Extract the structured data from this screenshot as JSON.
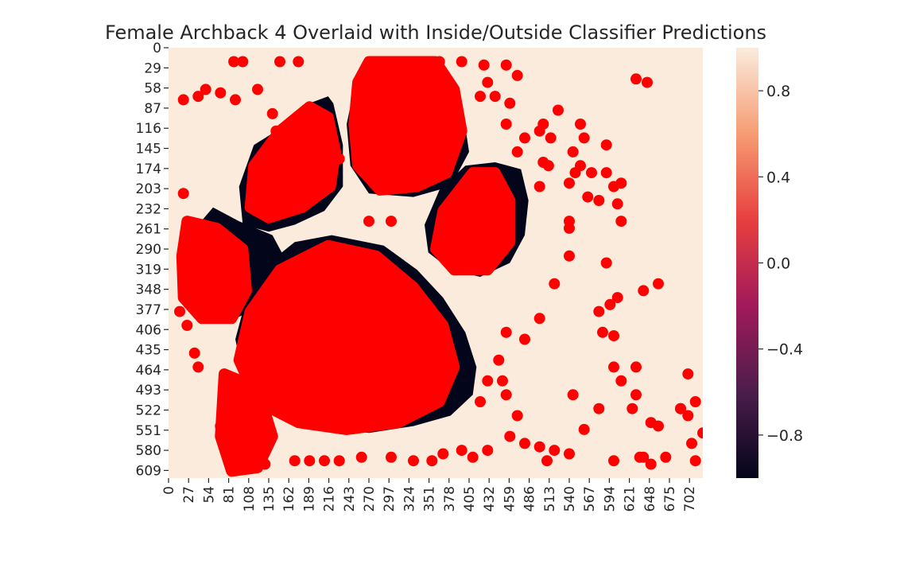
{
  "chart_data": {
    "type": "heatmap",
    "title": "Female Archback 4 Overlaid with Inside/Outside Classifier Predictions",
    "xlabel": "",
    "ylabel": "",
    "x_ticks": [
      "0",
      "27",
      "54",
      "81",
      "108",
      "135",
      "162",
      "189",
      "216",
      "243",
      "270",
      "297",
      "324",
      "351",
      "378",
      "405",
      "432",
      "459",
      "486",
      "513",
      "540",
      "567",
      "594",
      "621",
      "648",
      "675",
      "702"
    ],
    "y_ticks": [
      "0",
      "29",
      "58",
      "87",
      "116",
      "145",
      "174",
      "203",
      "232",
      "261",
      "290",
      "319",
      "348",
      "377",
      "406",
      "435",
      "464",
      "493",
      "522",
      "551",
      "580",
      "609"
    ],
    "xlim": [
      0,
      720
    ],
    "ylim": [
      0,
      620
    ],
    "colorbar": {
      "range": [
        -1,
        1
      ],
      "ticks": [
        0.8,
        0.4,
        0.0,
        -0.4,
        -0.8
      ],
      "tick_labels": [
        "0.8",
        "0.4",
        "0.0",
        "−0.4",
        "−0.8"
      ],
      "colormap": "rocket",
      "colors": [
        "#03051a",
        "#4c1d4b",
        "#a11a5b",
        "#e83f3f",
        "#f69c73",
        "#faebdd"
      ]
    },
    "background_value": 1.0,
    "inside_value": -1.0,
    "background_color": "#faebdd",
    "inside_color": "#03051a",
    "prediction_color": "#ff0000",
    "inside_regions": [
      {
        "name": "top-toe",
        "points": [
          [
            270,
            30
          ],
          [
            370,
            30
          ],
          [
            395,
            80
          ],
          [
            405,
            150
          ],
          [
            380,
            200
          ],
          [
            330,
            215
          ],
          [
            270,
            210
          ],
          [
            245,
            170
          ],
          [
            240,
            110
          ],
          [
            250,
            60
          ]
        ]
      },
      {
        "name": "upper-left-toe",
        "points": [
          [
            215,
            70
          ],
          [
            222,
            80
          ],
          [
            235,
            140
          ],
          [
            235,
            200
          ],
          [
            210,
            235
          ],
          [
            170,
            255
          ],
          [
            135,
            265
          ],
          [
            100,
            255
          ],
          [
            95,
            200
          ],
          [
            115,
            140
          ],
          [
            160,
            110
          ],
          [
            190,
            80
          ]
        ]
      },
      {
        "name": "right-toe",
        "points": [
          [
            400,
            170
          ],
          [
            440,
            165
          ],
          [
            475,
            175
          ],
          [
            485,
            220
          ],
          [
            480,
            270
          ],
          [
            460,
            310
          ],
          [
            420,
            330
          ],
          [
            380,
            320
          ],
          [
            350,
            295
          ],
          [
            345,
            255
          ],
          [
            365,
            205
          ]
        ]
      },
      {
        "name": "left-toe",
        "points": [
          [
            60,
            230
          ],
          [
            95,
            250
          ],
          [
            140,
            270
          ],
          [
            155,
            300
          ],
          [
            140,
            340
          ],
          [
            110,
            380
          ],
          [
            80,
            395
          ],
          [
            40,
            390
          ],
          [
            20,
            350
          ],
          [
            25,
            300
          ],
          [
            40,
            255
          ]
        ]
      },
      {
        "name": "main-pad",
        "points": [
          [
            220,
            270
          ],
          [
            290,
            285
          ],
          [
            335,
            320
          ],
          [
            370,
            360
          ],
          [
            400,
            410
          ],
          [
            415,
            460
          ],
          [
            410,
            500
          ],
          [
            380,
            530
          ],
          [
            330,
            545
          ],
          [
            270,
            555
          ],
          [
            200,
            545
          ],
          [
            130,
            520
          ],
          [
            100,
            470
          ],
          [
            90,
            420
          ],
          [
            105,
            360
          ],
          [
            135,
            310
          ],
          [
            170,
            280
          ]
        ]
      }
    ],
    "inside_holes": [
      {
        "name": "top-toe-gap",
        "points": [
          [
            340,
            30
          ],
          [
            360,
            38
          ],
          [
            365,
            45
          ],
          [
            345,
            40
          ]
        ]
      },
      {
        "name": "top-toe-notch",
        "points": [
          [
            330,
            180
          ],
          [
            345,
            185
          ],
          [
            342,
            205
          ],
          [
            325,
            200
          ]
        ]
      },
      {
        "name": "main-pad-slit",
        "points": [
          [
            285,
            320
          ],
          [
            300,
            325
          ],
          [
            300,
            340
          ],
          [
            285,
            335
          ]
        ]
      },
      {
        "name": "main-pad-dot",
        "points": [
          [
            355,
            445
          ],
          [
            368,
            448
          ],
          [
            365,
            462
          ],
          [
            352,
            458
          ]
        ]
      }
    ],
    "predictions": [
      {
        "name": "top-toe-fill",
        "points": [
          [
            270,
            20
          ],
          [
            360,
            20
          ],
          [
            385,
            60
          ],
          [
            395,
            120
          ],
          [
            375,
            180
          ],
          [
            335,
            200
          ],
          [
            285,
            205
          ],
          [
            255,
            170
          ],
          [
            250,
            110
          ],
          [
            255,
            50
          ]
        ]
      },
      {
        "name": "upper-left-toe-fill",
        "points": [
          [
            190,
            85
          ],
          [
            215,
            100
          ],
          [
            225,
            150
          ],
          [
            218,
            200
          ],
          [
            180,
            230
          ],
          [
            135,
            245
          ],
          [
            110,
            230
          ],
          [
            115,
            170
          ],
          [
            150,
            120
          ]
        ]
      },
      {
        "name": "right-toe-fill",
        "points": [
          [
            410,
            180
          ],
          [
            440,
            180
          ],
          [
            460,
            220
          ],
          [
            460,
            280
          ],
          [
            430,
            320
          ],
          [
            385,
            320
          ],
          [
            360,
            290
          ],
          [
            370,
            235
          ]
        ]
      },
      {
        "name": "left-toe-fill",
        "points": [
          [
            25,
            250
          ],
          [
            65,
            260
          ],
          [
            100,
            290
          ],
          [
            105,
            350
          ],
          [
            85,
            390
          ],
          [
            45,
            390
          ],
          [
            20,
            360
          ],
          [
            18,
            300
          ]
        ]
      },
      {
        "name": "main-pad-fill",
        "points": [
          [
            215,
            285
          ],
          [
            280,
            300
          ],
          [
            330,
            345
          ],
          [
            370,
            400
          ],
          [
            385,
            460
          ],
          [
            365,
            510
          ],
          [
            310,
            540
          ],
          [
            240,
            550
          ],
          [
            175,
            540
          ],
          [
            120,
            510
          ],
          [
            95,
            450
          ],
          [
            110,
            380
          ],
          [
            150,
            320
          ]
        ]
      },
      {
        "name": "bottom-left-cluster",
        "points": [
          [
            75,
            470
          ],
          [
            120,
            490
          ],
          [
            140,
            560
          ],
          [
            120,
            605
          ],
          [
            85,
            610
          ],
          [
            70,
            560
          ]
        ]
      }
    ],
    "prediction_dots": [
      [
        88,
        20
      ],
      [
        100,
        20
      ],
      [
        150,
        20
      ],
      [
        175,
        20
      ],
      [
        290,
        20
      ],
      [
        305,
        20
      ],
      [
        335,
        20
      ],
      [
        365,
        20
      ],
      [
        395,
        20
      ],
      [
        425,
        25
      ],
      [
        455,
        25
      ],
      [
        470,
        40
      ],
      [
        430,
        50
      ],
      [
        420,
        70
      ],
      [
        440,
        70
      ],
      [
        460,
        80
      ],
      [
        455,
        110
      ],
      [
        470,
        150
      ],
      [
        480,
        130
      ],
      [
        500,
        120
      ],
      [
        505,
        110
      ],
      [
        515,
        130
      ],
      [
        512,
        170
      ],
      [
        545,
        150
      ],
      [
        560,
        130
      ],
      [
        555,
        170
      ],
      [
        570,
        180
      ],
      [
        590,
        180
      ],
      [
        600,
        200
      ],
      [
        610,
        195
      ],
      [
        605,
        225
      ],
      [
        610,
        250
      ],
      [
        580,
        220
      ],
      [
        565,
        215
      ],
      [
        540,
        195
      ],
      [
        548,
        180
      ],
      [
        590,
        140
      ],
      [
        555,
        110
      ],
      [
        525,
        90
      ],
      [
        500,
        200
      ],
      [
        540,
        260
      ],
      [
        540,
        300
      ],
      [
        520,
        340
      ],
      [
        500,
        390
      ],
      [
        480,
        420
      ],
      [
        455,
        410
      ],
      [
        445,
        450
      ],
      [
        450,
        480
      ],
      [
        420,
        510
      ],
      [
        430,
        480
      ],
      [
        455,
        500
      ],
      [
        470,
        530
      ],
      [
        480,
        570
      ],
      [
        500,
        575
      ],
      [
        510,
        595
      ],
      [
        520,
        580
      ],
      [
        540,
        585
      ],
      [
        460,
        560
      ],
      [
        430,
        580
      ],
      [
        410,
        590
      ],
      [
        395,
        580
      ],
      [
        20,
        75
      ],
      [
        40,
        70
      ],
      [
        50,
        60
      ],
      [
        70,
        65
      ],
      [
        90,
        75
      ],
      [
        120,
        60
      ],
      [
        140,
        95
      ],
      [
        145,
        120
      ],
      [
        20,
        210
      ],
      [
        30,
        270
      ],
      [
        15,
        380
      ],
      [
        25,
        400
      ],
      [
        35,
        440
      ],
      [
        40,
        460
      ],
      [
        70,
        545
      ],
      [
        80,
        590
      ],
      [
        100,
        600
      ],
      [
        130,
        600
      ],
      [
        170,
        595
      ],
      [
        190,
        595
      ],
      [
        210,
        595
      ],
      [
        230,
        595
      ],
      [
        260,
        590
      ],
      [
        300,
        590
      ],
      [
        330,
        595
      ],
      [
        355,
        595
      ],
      [
        370,
        585
      ],
      [
        580,
        380
      ],
      [
        595,
        370
      ],
      [
        605,
        360
      ],
      [
        585,
        410
      ],
      [
        600,
        415
      ],
      [
        640,
        350
      ],
      [
        660,
        340
      ],
      [
        610,
        480
      ],
      [
        630,
        500
      ],
      [
        625,
        520
      ],
      [
        650,
        540
      ],
      [
        660,
        545
      ],
      [
        690,
        520
      ],
      [
        710,
        510
      ],
      [
        700,
        530
      ],
      [
        710,
        595
      ],
      [
        640,
        590
      ],
      [
        650,
        600
      ],
      [
        670,
        590
      ],
      [
        635,
        590
      ],
      [
        600,
        595
      ],
      [
        580,
        520
      ],
      [
        545,
        500
      ],
      [
        645,
        50
      ],
      [
        630,
        45
      ],
      [
        705,
        570
      ],
      [
        720,
        555
      ],
      [
        700,
        470
      ],
      [
        690,
        520
      ],
      [
        630,
        460
      ],
      [
        600,
        460
      ],
      [
        590,
        310
      ],
      [
        560,
        550
      ],
      [
        270,
        250
      ],
      [
        300,
        250
      ],
      [
        230,
        160
      ],
      [
        160,
        230
      ],
      [
        440,
        220
      ],
      [
        505,
        165
      ],
      [
        540,
        250
      ]
    ]
  }
}
